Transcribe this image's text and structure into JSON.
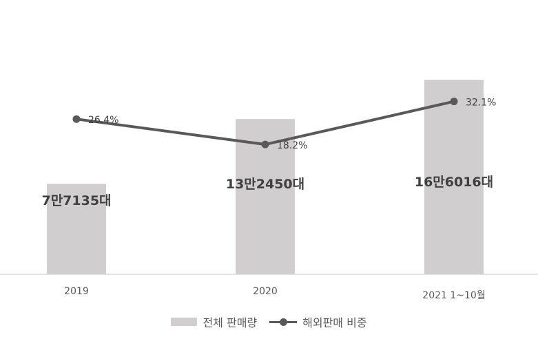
{
  "chart_data": {
    "type": "bar",
    "categories": [
      "2019",
      "2020",
      "2021 1~10월"
    ],
    "series": [
      {
        "name": "전체 판매량",
        "type": "bar",
        "values": [
          77135,
          132450,
          166016
        ],
        "data_labels": [
          "7만7135대",
          "13만2450대",
          "16만6016대"
        ],
        "color": "#d0cece"
      },
      {
        "name": "해외판매 비중",
        "type": "line",
        "values": [
          26.4,
          18.2,
          32.1
        ],
        "data_labels": [
          "26.4%",
          "18.2%",
          "32.1%"
        ],
        "color": "#595959"
      }
    ],
    "title": "",
    "xlabel": "",
    "ylabel": "",
    "ylim": [
      0,
      200000
    ],
    "y2lim": [
      0,
      35
    ],
    "grid": false,
    "legend": "bottom"
  }
}
